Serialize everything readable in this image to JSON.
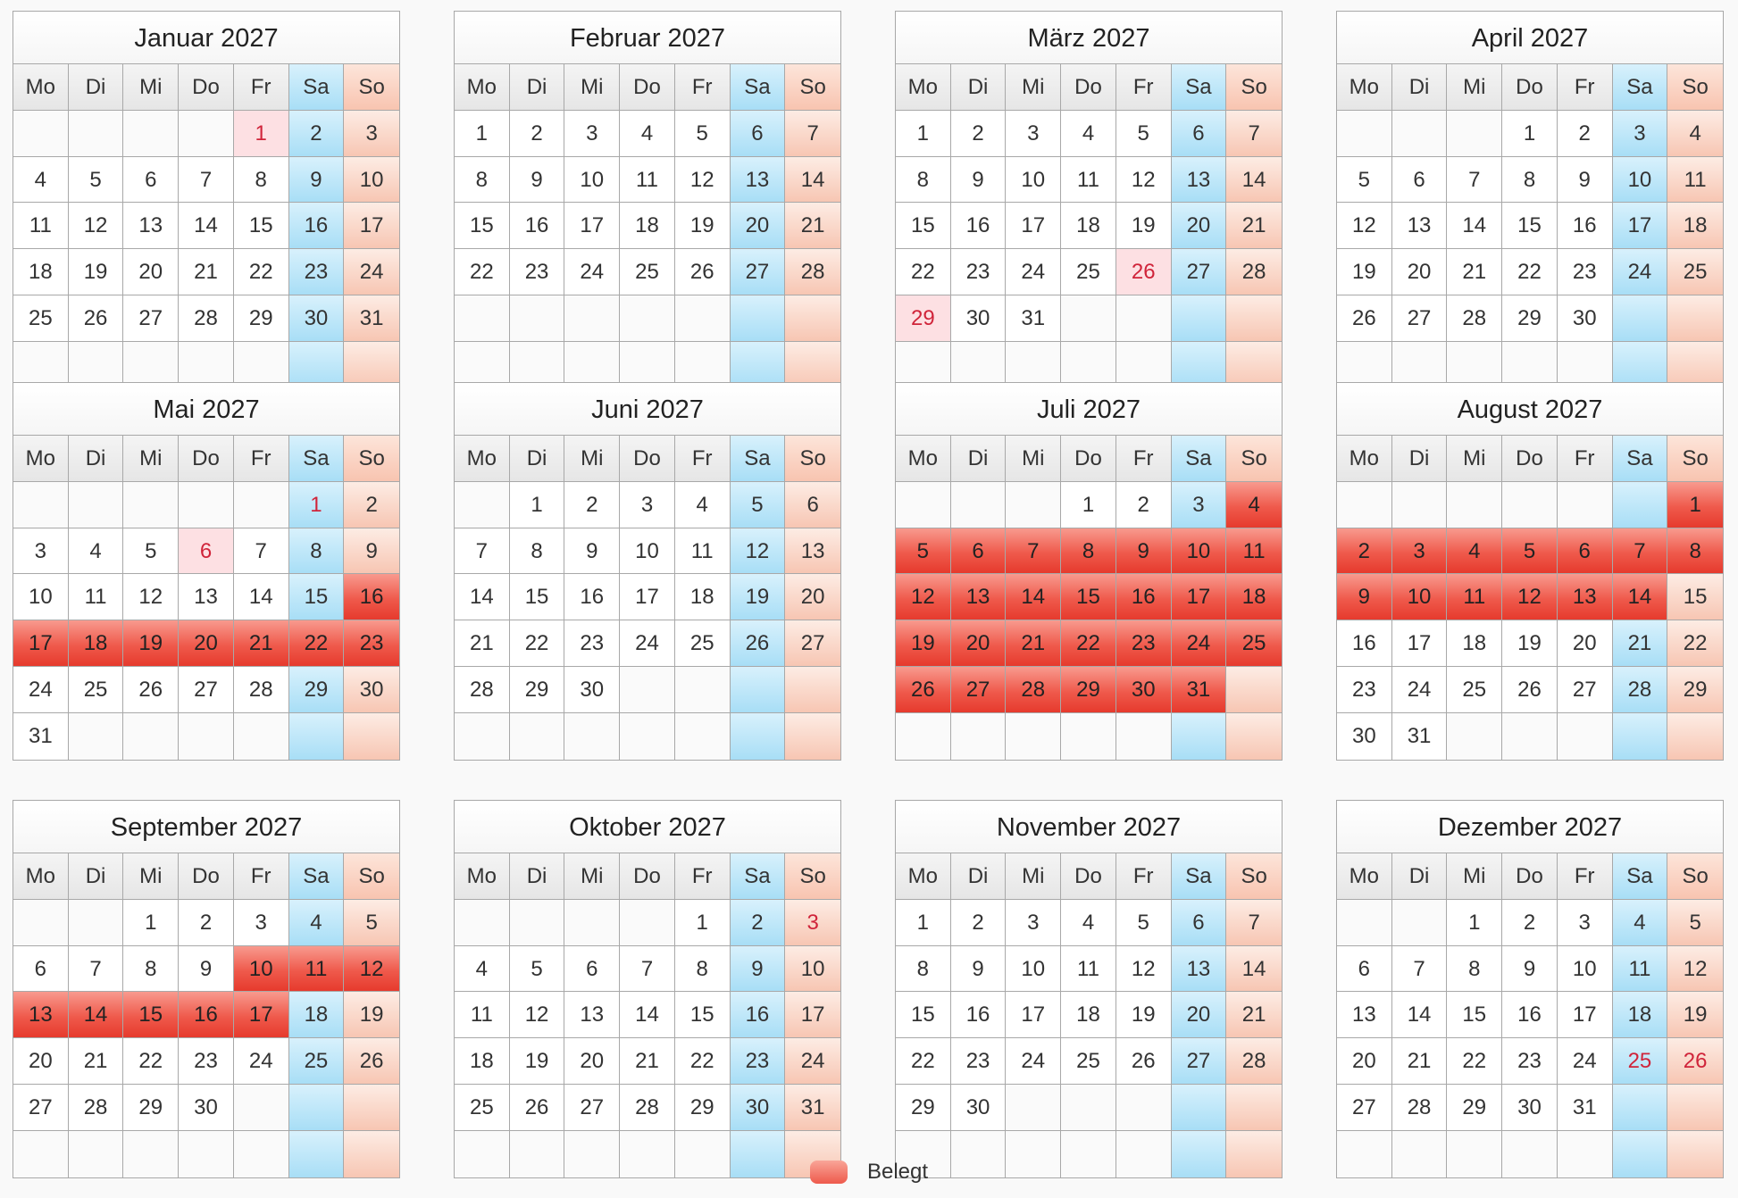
{
  "weekdays": [
    "Mo",
    "Di",
    "Mi",
    "Do",
    "Fr",
    "Sa",
    "So"
  ],
  "colors": {
    "booked": "#ee5a4c",
    "saturday": "#a8def6",
    "sunday": "#f7c6b3",
    "holiday_text": "#d0243a"
  },
  "legend": {
    "booked_label": "Belegt",
    "swatch_icon": "booked-swatch-icon"
  },
  "months": [
    {
      "title": "Januar 2027",
      "offset": 4,
      "days": 31,
      "holidays": [
        1
      ],
      "booked": []
    },
    {
      "title": "Februar 2027",
      "offset": 0,
      "days": 28,
      "holidays": [],
      "booked": []
    },
    {
      "title": "März 2027",
      "offset": 0,
      "days": 31,
      "holidays": [
        26,
        29
      ],
      "booked": []
    },
    {
      "title": "April 2027",
      "offset": 3,
      "days": 30,
      "holidays": [],
      "booked": []
    },
    {
      "title": "Mai 2027",
      "offset": 5,
      "days": 31,
      "holidays": [
        1,
        6
      ],
      "booked": [
        16,
        17,
        18,
        19,
        20,
        21,
        22,
        23
      ]
    },
    {
      "title": "Juni 2027",
      "offset": 1,
      "days": 30,
      "holidays": [],
      "booked": []
    },
    {
      "title": "Juli 2027",
      "offset": 3,
      "days": 31,
      "holidays": [],
      "booked": [
        4,
        5,
        6,
        7,
        8,
        9,
        10,
        11,
        12,
        13,
        14,
        15,
        16,
        17,
        18,
        19,
        20,
        21,
        22,
        23,
        24,
        25,
        26,
        27,
        28,
        29,
        30,
        31
      ]
    },
    {
      "title": "August 2027",
      "offset": 6,
      "days": 31,
      "holidays": [],
      "booked": [
        1,
        2,
        3,
        4,
        5,
        6,
        7,
        8,
        9,
        10,
        11,
        12,
        13,
        14
      ]
    },
    {
      "title": "September 2027",
      "offset": 2,
      "days": 30,
      "holidays": [],
      "booked": [
        10,
        11,
        12,
        13,
        14,
        15,
        16,
        17
      ]
    },
    {
      "title": "Oktober 2027",
      "offset": 4,
      "days": 31,
      "holidays": [
        3
      ],
      "booked": []
    },
    {
      "title": "November 2027",
      "offset": 0,
      "days": 30,
      "holidays": [],
      "booked": []
    },
    {
      "title": "Dezember 2027",
      "offset": 2,
      "days": 31,
      "holidays": [
        25,
        26
      ],
      "booked": []
    }
  ]
}
